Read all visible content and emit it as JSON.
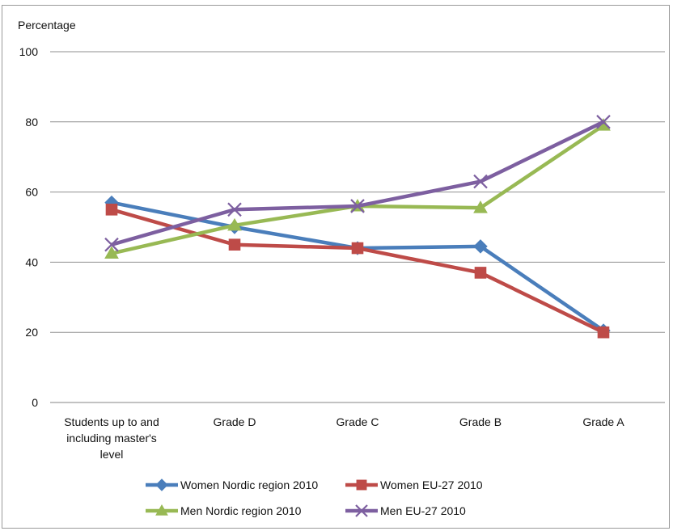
{
  "chart_data": {
    "type": "line",
    "title": "",
    "xlabel": "",
    "ylabel": "Percentage",
    "ylim": [
      0,
      100
    ],
    "yticks": [
      0,
      20,
      40,
      60,
      80,
      100
    ],
    "grid": "horizontal",
    "legend_position": "bottom",
    "categories": [
      [
        "Students up to and",
        "including master's",
        "level"
      ],
      [
        "Grade D"
      ],
      [
        "Grade C"
      ],
      [
        "Grade B"
      ],
      [
        "Grade A"
      ]
    ],
    "series": [
      {
        "name": "Women Nordic region 2010",
        "color": "#4a7ebb",
        "marker": "diamond",
        "values": [
          57,
          50,
          44,
          44.5,
          20.5
        ]
      },
      {
        "name": "Women EU-27 2010",
        "color": "#be4b48",
        "marker": "square",
        "values": [
          55,
          45,
          44,
          37,
          20
        ]
      },
      {
        "name": "Men Nordic region 2010",
        "color": "#98b954",
        "marker": "triangle",
        "values": [
          42.5,
          50.5,
          56,
          55.5,
          79
        ]
      },
      {
        "name": "Men EU-27 2010",
        "color": "#7d5fa0",
        "marker": "x",
        "values": [
          45,
          55,
          56,
          63,
          80
        ]
      }
    ]
  }
}
